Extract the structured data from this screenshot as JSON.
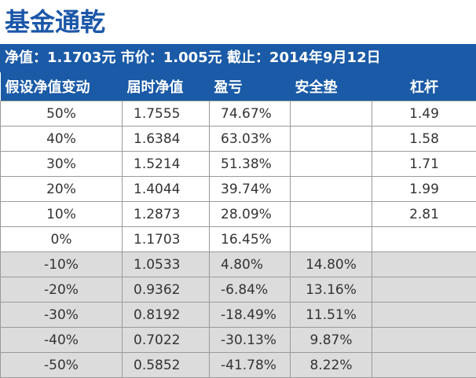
{
  "title": "基金通乾",
  "info": "净值：1.1703元 市价：1.005元 截止：2014年9月12日",
  "headers": [
    "假设净值变动",
    "届时净值",
    "盈亏",
    "安全垫",
    "杠杆"
  ],
  "rows": [
    {
      "change": "50%",
      "nav": "1.7555",
      "pnl": "74.67%",
      "cushion": "",
      "leverage": "1.49",
      "negative": false
    },
    {
      "change": "40%",
      "nav": "1.6384",
      "pnl": "63.03%",
      "cushion": "",
      "leverage": "1.58",
      "negative": false
    },
    {
      "change": "30%",
      "nav": "1.5214",
      "pnl": "51.38%",
      "cushion": "",
      "leverage": "1.71",
      "negative": false
    },
    {
      "change": "20%",
      "nav": "1.4044",
      "pnl": "39.74%",
      "cushion": "",
      "leverage": "1.99",
      "negative": false
    },
    {
      "change": "10%",
      "nav": "1.2873",
      "pnl": "28.09%",
      "cushion": "",
      "leverage": "2.81",
      "negative": false
    },
    {
      "change": "0%",
      "nav": "1.1703",
      "pnl": "16.45%",
      "cushion": "",
      "leverage": "",
      "negative": false
    },
    {
      "change": "-10%",
      "nav": "1.0533",
      "pnl": "4.80%",
      "cushion": "14.80%",
      "leverage": "",
      "negative": true
    },
    {
      "change": "-20%",
      "nav": "0.9362",
      "pnl": "-6.84%",
      "cushion": "13.16%",
      "leverage": "",
      "negative": true
    },
    {
      "change": "-30%",
      "nav": "0.8192",
      "pnl": "-18.49%",
      "cushion": "11.51%",
      "leverage": "",
      "negative": true
    },
    {
      "change": "-40%",
      "nav": "0.7022",
      "pnl": "-30.13%",
      "cushion": "9.87%",
      "leverage": "",
      "negative": true
    },
    {
      "change": "-50%",
      "nav": "0.5852",
      "pnl": "-41.78%",
      "cushion": "8.22%",
      "leverage": "",
      "negative": true
    }
  ],
  "colors": {
    "title": "#1b57a8",
    "header_bg": "#1a5aa6",
    "negative_row_bg": "#dcdcdc",
    "border": "#9a9a9a"
  }
}
